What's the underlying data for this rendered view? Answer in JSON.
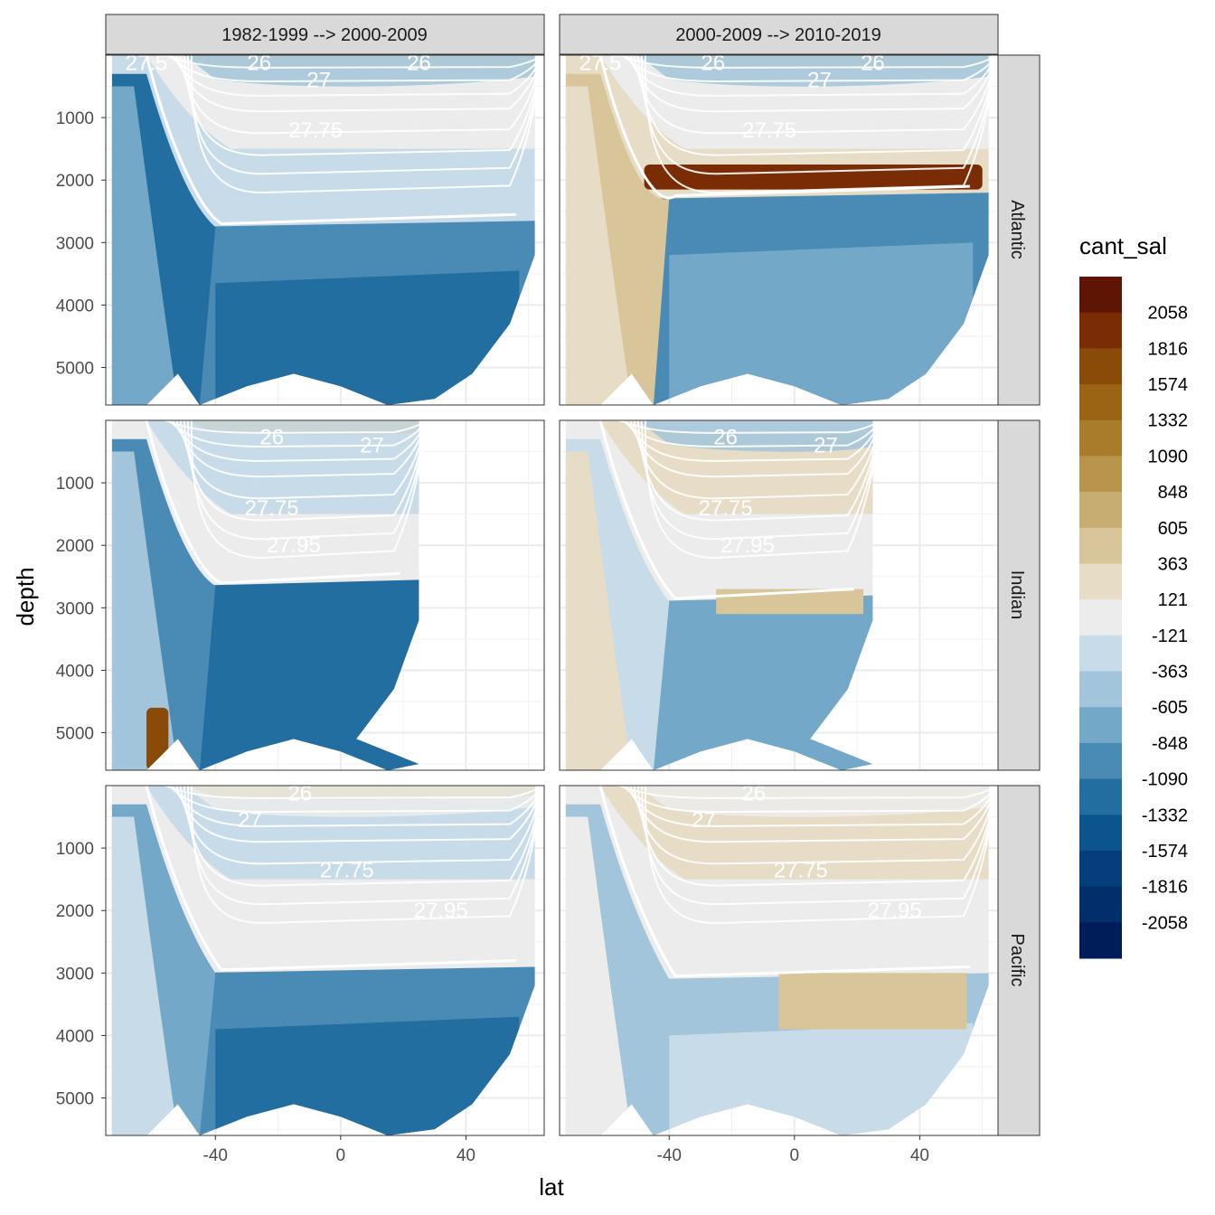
{
  "chart_data": {
    "type": "heatmap",
    "subtype": "faceted filled-contour depth sections",
    "xlabel": "lat",
    "ylabel": "depth",
    "xlim": [
      -75,
      65
    ],
    "ylim": [
      5600,
      0
    ],
    "x_ticks": [
      -40,
      0,
      40
    ],
    "x_tick_labels": [
      "-40",
      "0",
      "40"
    ],
    "y_ticks": [
      1000,
      2000,
      3000,
      4000,
      5000
    ],
    "y_tick_labels": [
      "1000",
      "2000",
      "3000",
      "4000",
      "5000"
    ],
    "col_facets": [
      "1982-1999 --> 2000-2009",
      "2000-2009 --> 2010-2019"
    ],
    "row_facets": [
      "Atlantic",
      "Indian",
      "Pacific"
    ],
    "legend": {
      "title": "cant_sal",
      "breaks": [
        "2058",
        "1816",
        "1574",
        "1332",
        "1090",
        "848",
        "605",
        "363",
        "121",
        "-121",
        "-363",
        "-605",
        "-848",
        "-1090",
        "-1332",
        "-1574",
        "-1816",
        "-2058"
      ],
      "colors": [
        "#5e1503",
        "#7a2d05",
        "#8a4a08",
        "#9a6414",
        "#a97c2c",
        "#b9944c",
        "#c8ad72",
        "#d8c59a",
        "#e7dcc6",
        "#ebeceb",
        "#c8dbe8",
        "#a2c5db",
        "#74a8c8",
        "#4a8bb5",
        "#226ea1",
        "#0b548c",
        "#053e7a",
        "#022e6b",
        "#001c59"
      ]
    },
    "isopycnals": [
      {
        "label": "27.5"
      },
      {
        "label": "26"
      },
      {
        "label": "27"
      },
      {
        "label": "27.75"
      },
      {
        "label": "27.95"
      }
    ],
    "panels": [
      {
        "row": "Atlantic",
        "col": "1982-1999 --> 2000-2009",
        "lat_max": 62,
        "labels": [
          {
            "text": "27.5",
            "lat": -62,
            "depth": 120
          },
          {
            "text": "26",
            "lat": -26,
            "depth": 120
          },
          {
            "text": "26",
            "lat": 25,
            "depth": 120
          },
          {
            "text": "27",
            "lat": -7,
            "depth": 400
          },
          {
            "text": "27.75",
            "lat": -8,
            "depth": 1200
          }
        ]
      },
      {
        "row": "Atlantic",
        "col": "2000-2009 --> 2010-2019",
        "lat_max": 62,
        "labels": [
          {
            "text": "27.5",
            "lat": -62,
            "depth": 120
          },
          {
            "text": "26",
            "lat": -26,
            "depth": 120
          },
          {
            "text": "26",
            "lat": 25,
            "depth": 120
          },
          {
            "text": "27",
            "lat": 8,
            "depth": 400
          },
          {
            "text": "27.75",
            "lat": -8,
            "depth": 1200
          }
        ]
      },
      {
        "row": "Indian",
        "col": "1982-1999 --> 2000-2009",
        "lat_max": 25,
        "labels": [
          {
            "text": "26",
            "lat": -22,
            "depth": 270
          },
          {
            "text": "27",
            "lat": 10,
            "depth": 400
          },
          {
            "text": "27.75",
            "lat": -22,
            "depth": 1400
          },
          {
            "text": "27.95",
            "lat": -15,
            "depth": 2000
          }
        ]
      },
      {
        "row": "Indian",
        "col": "2000-2009 --> 2010-2019",
        "lat_max": 25,
        "labels": [
          {
            "text": "26",
            "lat": -22,
            "depth": 270
          },
          {
            "text": "27",
            "lat": 10,
            "depth": 400
          },
          {
            "text": "27.75",
            "lat": -22,
            "depth": 1400
          },
          {
            "text": "27.95",
            "lat": -15,
            "depth": 2000
          }
        ]
      },
      {
        "row": "Pacific",
        "col": "1982-1999 --> 2000-2009",
        "lat_max": 62,
        "labels": [
          {
            "text": "26",
            "lat": -13,
            "depth": 120
          },
          {
            "text": "27",
            "lat": -29,
            "depth": 550
          },
          {
            "text": "27.75",
            "lat": 2,
            "depth": 1350
          },
          {
            "text": "27.95",
            "lat": 32,
            "depth": 2000
          }
        ]
      },
      {
        "row": "Pacific",
        "col": "2000-2009 --> 2010-2019",
        "lat_max": 62,
        "labels": [
          {
            "text": "26",
            "lat": -13,
            "depth": 120
          },
          {
            "text": "27",
            "lat": -29,
            "depth": 550
          },
          {
            "text": "27.75",
            "lat": 2,
            "depth": 1350
          },
          {
            "text": "27.95",
            "lat": 32,
            "depth": 2000
          }
        ]
      }
    ]
  }
}
